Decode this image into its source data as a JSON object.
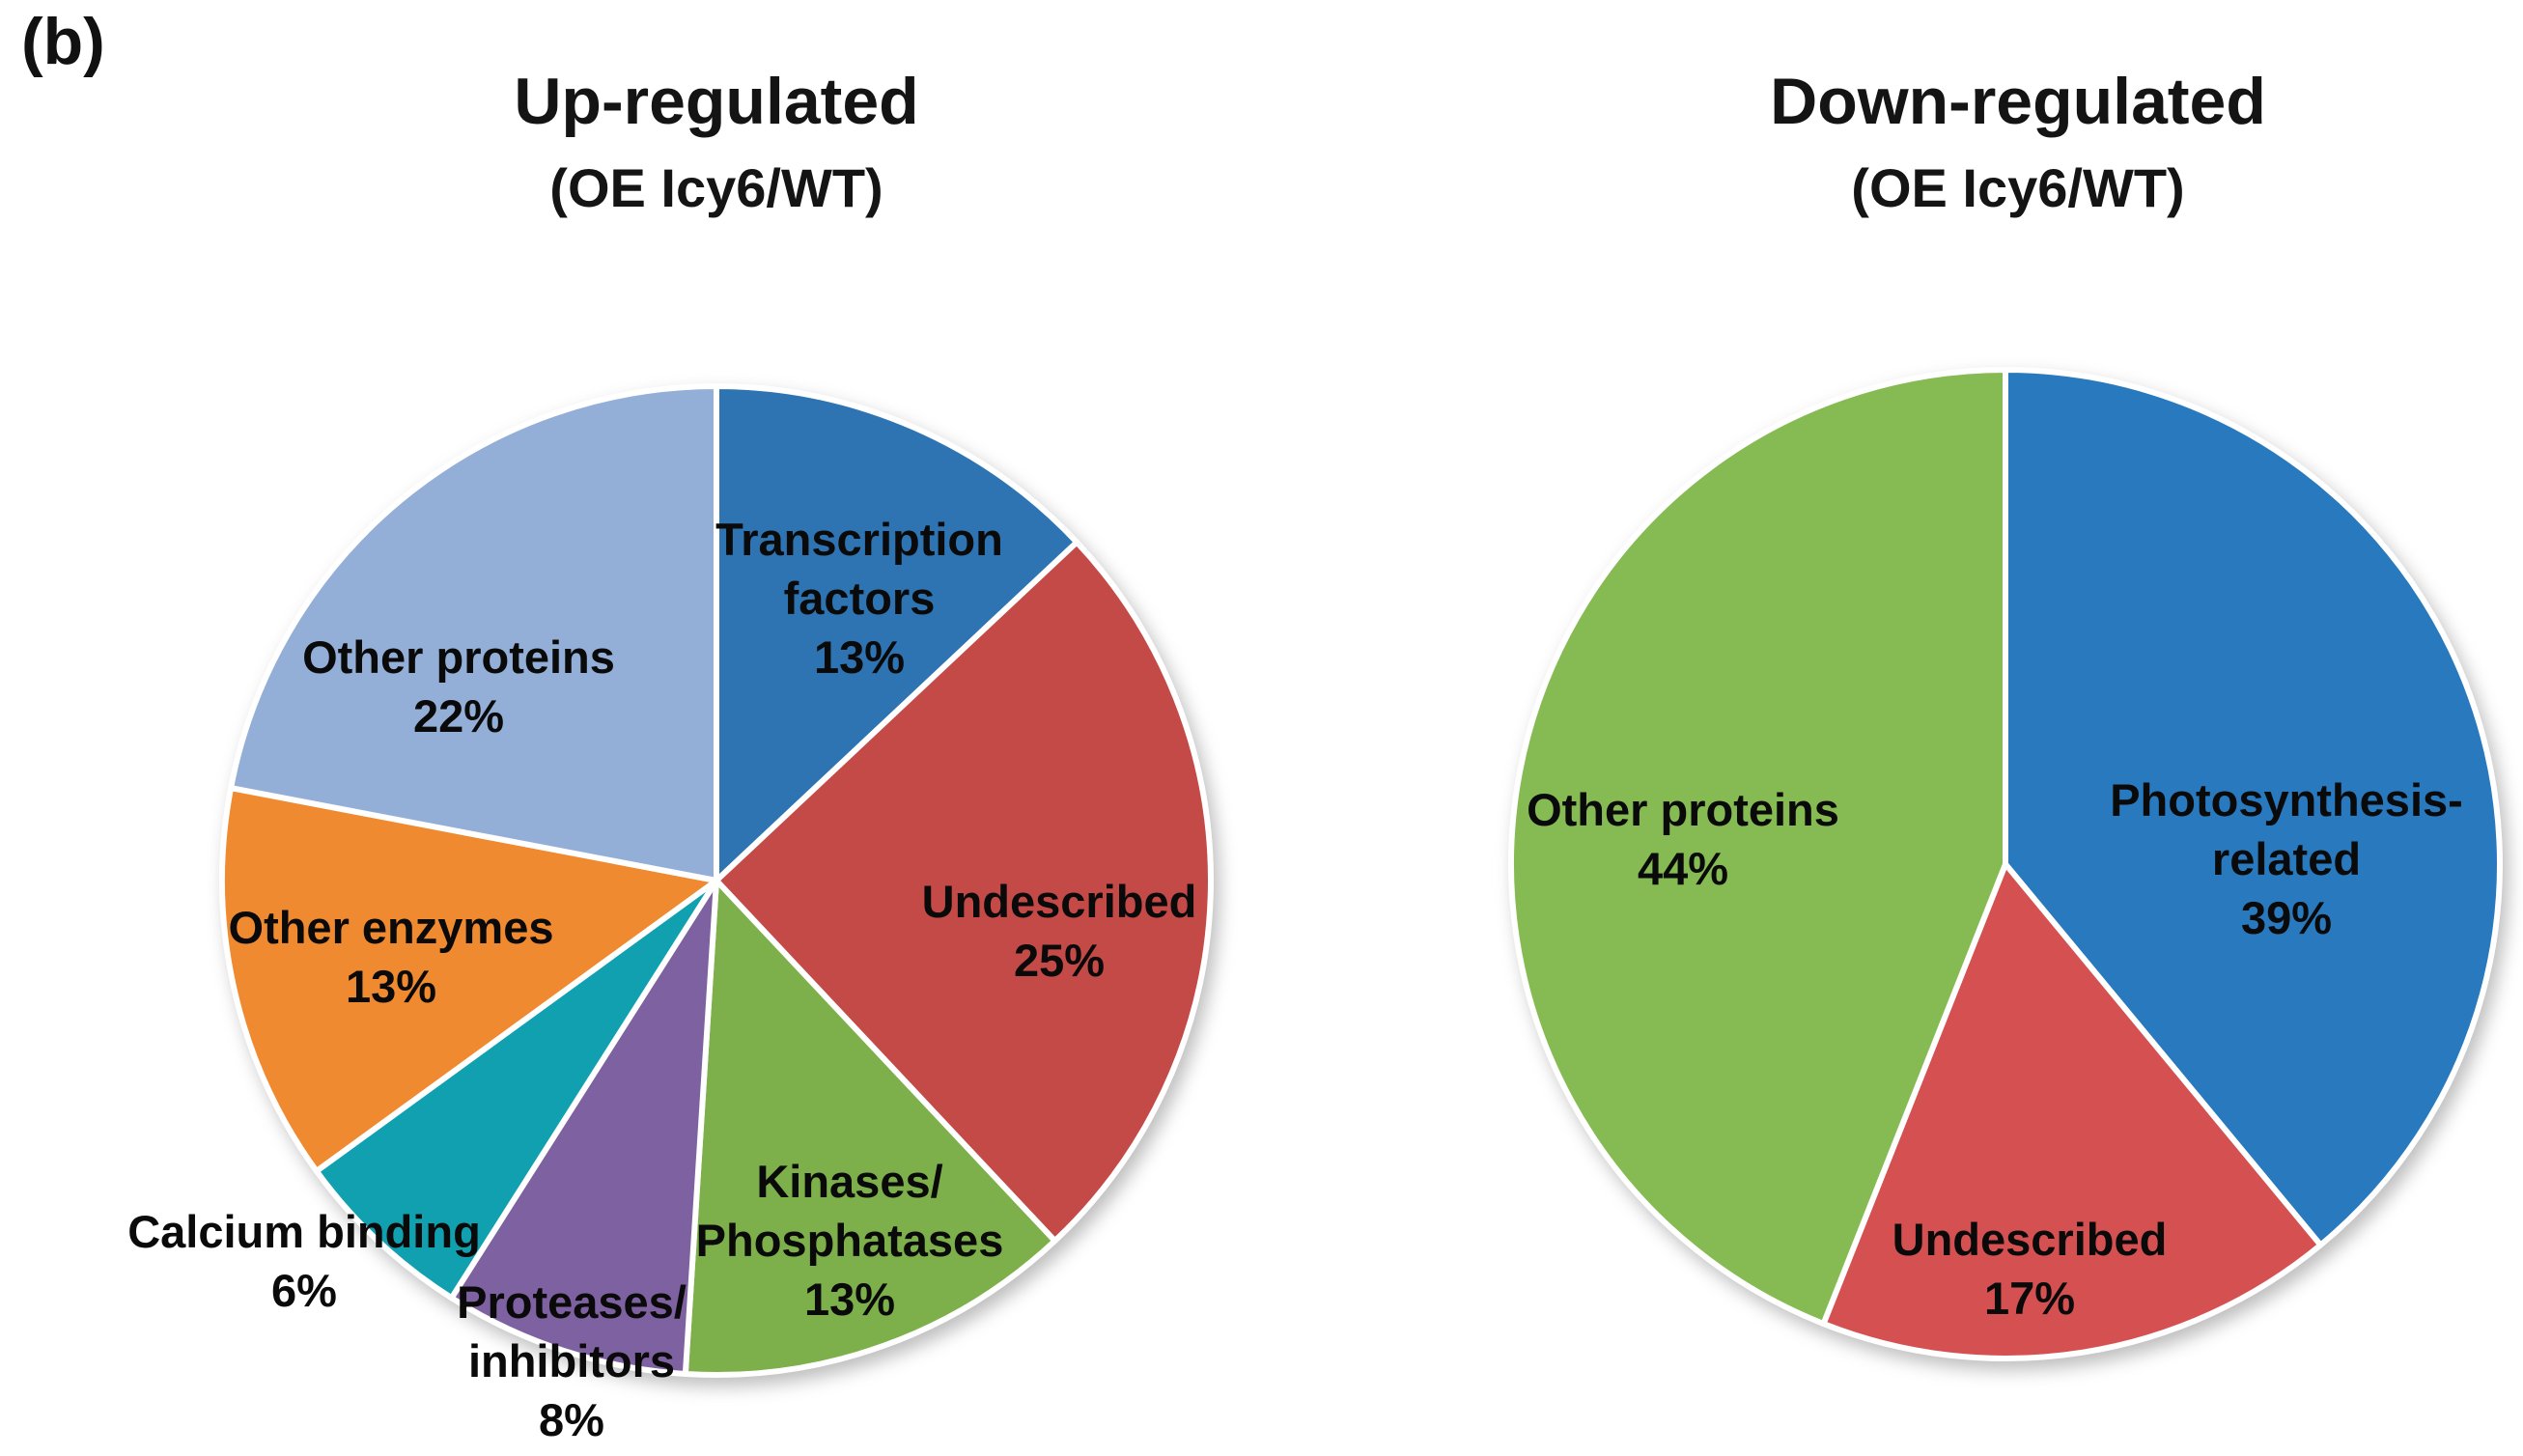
{
  "figure_label": "(b)",
  "chart_data": [
    {
      "type": "pie",
      "title": "Up-regulated",
      "subtitle": "(OE Icy6/WT)",
      "start_angle_deg": 0,
      "direction": "clockwise",
      "legend": "none",
      "slices": [
        {
          "name": "Transcription factors",
          "value_pct": 13,
          "pct_label": "13%",
          "lines": [
            "Transcription",
            "factors"
          ],
          "color": "#2E74B2"
        },
        {
          "name": "Undescribed",
          "value_pct": 25,
          "pct_label": "25%",
          "lines": [
            "Undescribed"
          ],
          "color": "#C44A48"
        },
        {
          "name": "Kinases/Phosphatases",
          "value_pct": 13,
          "pct_label": "13%",
          "lines": [
            "Kinases/",
            "Phosphatases"
          ],
          "color": "#7DB04A"
        },
        {
          "name": "Proteases/inhibitors",
          "value_pct": 8,
          "pct_label": "8%",
          "lines": [
            "Proteases/",
            "inhibitors"
          ],
          "color": "#7E61A0"
        },
        {
          "name": "Calcium binding",
          "value_pct": 6,
          "pct_label": "6%",
          "lines": [
            "Calcium binding"
          ],
          "color": "#10A0B0"
        },
        {
          "name": "Other enzymes",
          "value_pct": 13,
          "pct_label": "13%",
          "lines": [
            "Other enzymes"
          ],
          "color": "#F08A30"
        },
        {
          "name": "Other proteins",
          "value_pct": 22,
          "pct_label": "22%",
          "lines": [
            "Other proteins"
          ],
          "color": "#93AFD7"
        }
      ]
    },
    {
      "type": "pie",
      "title": "Down-regulated",
      "subtitle": "(OE Icy6/WT)",
      "start_angle_deg": 0,
      "direction": "clockwise",
      "legend": "none",
      "slices": [
        {
          "name": "Photosynthesis-related",
          "value_pct": 39,
          "pct_label": "39%",
          "lines": [
            "Photosynthesis-",
            "related"
          ],
          "color": "#2879BE"
        },
        {
          "name": "Undescribed",
          "value_pct": 17,
          "pct_label": "17%",
          "lines": [
            "Undescribed"
          ],
          "color": "#D55151"
        },
        {
          "name": "Other proteins",
          "value_pct": 44,
          "pct_label": "44%",
          "lines": [
            "Other proteins"
          ],
          "color": "#86BB53"
        }
      ]
    }
  ]
}
